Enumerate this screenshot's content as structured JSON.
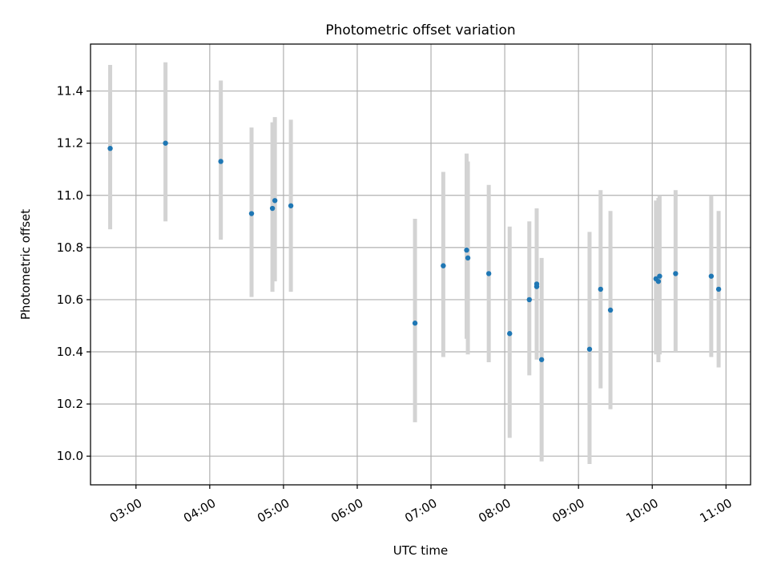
{
  "chart_data": {
    "type": "scatter",
    "title": "Photometric offset variation",
    "xlabel": "UTC time",
    "ylabel": "Photometric offset",
    "x_unit": "UTC time (HH:MM)",
    "xlim": [
      "02:23",
      "11:20"
    ],
    "ylim": [
      9.89,
      11.58
    ],
    "xticks": [
      "03:00",
      "04:00",
      "05:00",
      "06:00",
      "07:00",
      "08:00",
      "09:00",
      "10:00",
      "11:00"
    ],
    "yticks": [
      "10.0",
      "10.2",
      "10.4",
      "10.6",
      "10.8",
      "11.0",
      "11.2",
      "11.4"
    ],
    "grid": true,
    "legend": "none",
    "colors": {
      "marker": "#1f77b4",
      "errorbar": "#d3d3d3",
      "grid": "#b0b0b0"
    },
    "points": [
      {
        "x": "02:39",
        "y": 11.18,
        "ylow": 10.87,
        "yhigh": 11.5
      },
      {
        "x": "03:24",
        "y": 11.2,
        "ylow": 10.9,
        "yhigh": 11.51
      },
      {
        "x": "04:09",
        "y": 11.13,
        "ylow": 10.83,
        "yhigh": 11.44
      },
      {
        "x": "04:34",
        "y": 10.93,
        "ylow": 10.61,
        "yhigh": 11.26
      },
      {
        "x": "04:51",
        "y": 10.95,
        "ylow": 10.63,
        "yhigh": 11.28
      },
      {
        "x": "04:53",
        "y": 10.98,
        "ylow": 10.67,
        "yhigh": 11.3
      },
      {
        "x": "05:06",
        "y": 10.96,
        "ylow": 10.63,
        "yhigh": 11.29
      },
      {
        "x": "06:47",
        "y": 10.51,
        "ylow": 10.13,
        "yhigh": 10.91
      },
      {
        "x": "07:10",
        "y": 10.73,
        "ylow": 10.38,
        "yhigh": 11.09
      },
      {
        "x": "07:29",
        "y": 10.79,
        "ylow": 10.45,
        "yhigh": 11.16
      },
      {
        "x": "07:30",
        "y": 10.76,
        "ylow": 10.39,
        "yhigh": 11.13
      },
      {
        "x": "07:47",
        "y": 10.7,
        "ylow": 10.36,
        "yhigh": 11.04
      },
      {
        "x": "08:04",
        "y": 10.47,
        "ylow": 10.07,
        "yhigh": 10.88
      },
      {
        "x": "08:20",
        "y": 10.6,
        "ylow": 10.31,
        "yhigh": 10.9
      },
      {
        "x": "08:26",
        "y": 10.65,
        "ylow": 10.37,
        "yhigh": 10.95
      },
      {
        "x": "08:26",
        "y": 10.66,
        "ylow": 10.4,
        "yhigh": 10.93
      },
      {
        "x": "08:30",
        "y": 10.37,
        "ylow": 9.98,
        "yhigh": 10.76
      },
      {
        "x": "09:09",
        "y": 10.41,
        "ylow": 9.97,
        "yhigh": 10.86
      },
      {
        "x": "09:18",
        "y": 10.64,
        "ylow": 10.26,
        "yhigh": 11.02
      },
      {
        "x": "09:26",
        "y": 10.56,
        "ylow": 10.18,
        "yhigh": 10.94
      },
      {
        "x": "10:03",
        "y": 10.68,
        "ylow": 10.39,
        "yhigh": 10.98
      },
      {
        "x": "10:05",
        "y": 10.67,
        "ylow": 10.36,
        "yhigh": 10.99
      },
      {
        "x": "10:06",
        "y": 10.69,
        "ylow": 10.39,
        "yhigh": 11.0
      },
      {
        "x": "10:19",
        "y": 10.7,
        "ylow": 10.4,
        "yhigh": 11.02
      },
      {
        "x": "10:48",
        "y": 10.69,
        "ylow": 10.38,
        "yhigh": 11.0
      },
      {
        "x": "10:54",
        "y": 10.64,
        "ylow": 10.34,
        "yhigh": 10.94
      }
    ]
  }
}
